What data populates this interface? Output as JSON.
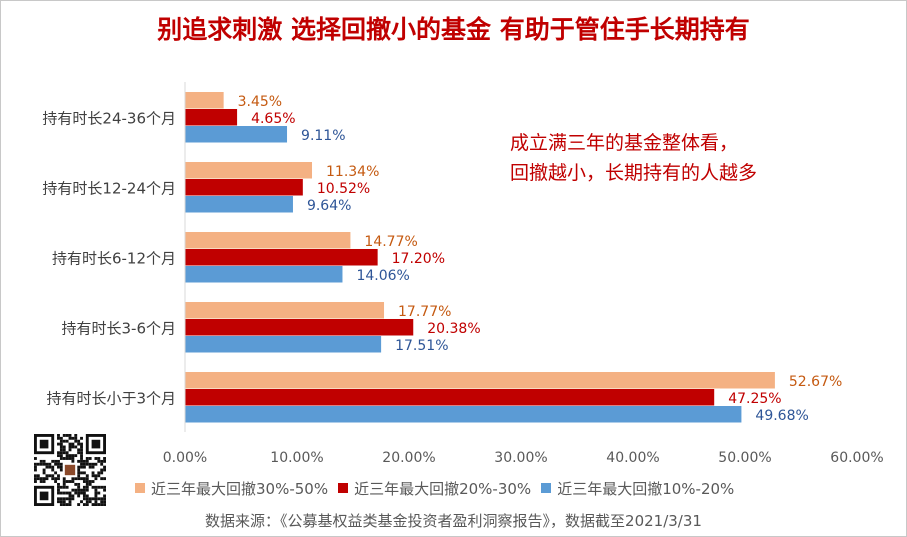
{
  "title": "别追求刺激 选择回撤小的基金 有助于管住手长期持有",
  "annotation": [
    "成立满三年的基金整体看，",
    "回撤越小，长期持有的人越多"
  ],
  "source": "数据来源：《公募基权益类基金投资者盈利洞察报告》，数据截至2021/3/31",
  "colors": {
    "series1": "#F4B183",
    "series2": "#C00000",
    "series3": "#5B9BD5",
    "label1": "#C55A11",
    "label2": "#C00000",
    "label3": "#2E5597"
  },
  "chart_data": {
    "type": "bar",
    "orientation": "horizontal",
    "categories": [
      "持有时长24-36个月",
      "持有时长12-24个月",
      "持有时长6-12个月",
      "持有时长3-6个月",
      "持有时长小于3个月"
    ],
    "series": [
      {
        "name": "近三年最大回撤30%-50%",
        "values": [
          3.45,
          11.34,
          14.77,
          17.77,
          52.67
        ]
      },
      {
        "name": "近三年最大回撤20%-30%",
        "values": [
          4.65,
          10.52,
          17.2,
          20.38,
          47.25
        ]
      },
      {
        "name": "近三年最大回撤10%-20%",
        "values": [
          9.11,
          9.64,
          14.06,
          17.51,
          49.68
        ]
      }
    ],
    "value_labels": [
      [
        "3.45%",
        "11.34%",
        "14.77%",
        "17.77%",
        "52.67%"
      ],
      [
        "4.65%",
        "10.52%",
        "17.20%",
        "20.38%",
        "47.25%"
      ],
      [
        "9.11%",
        "9.64%",
        "14.06%",
        "17.51%",
        "49.68%"
      ]
    ],
    "x_ticks": [
      "0.00%",
      "10.00%",
      "20.00%",
      "30.00%",
      "40.00%",
      "50.00%",
      "60.00%"
    ],
    "xlim": [
      0,
      60
    ],
    "grid": false,
    "legend_position": "bottom"
  }
}
